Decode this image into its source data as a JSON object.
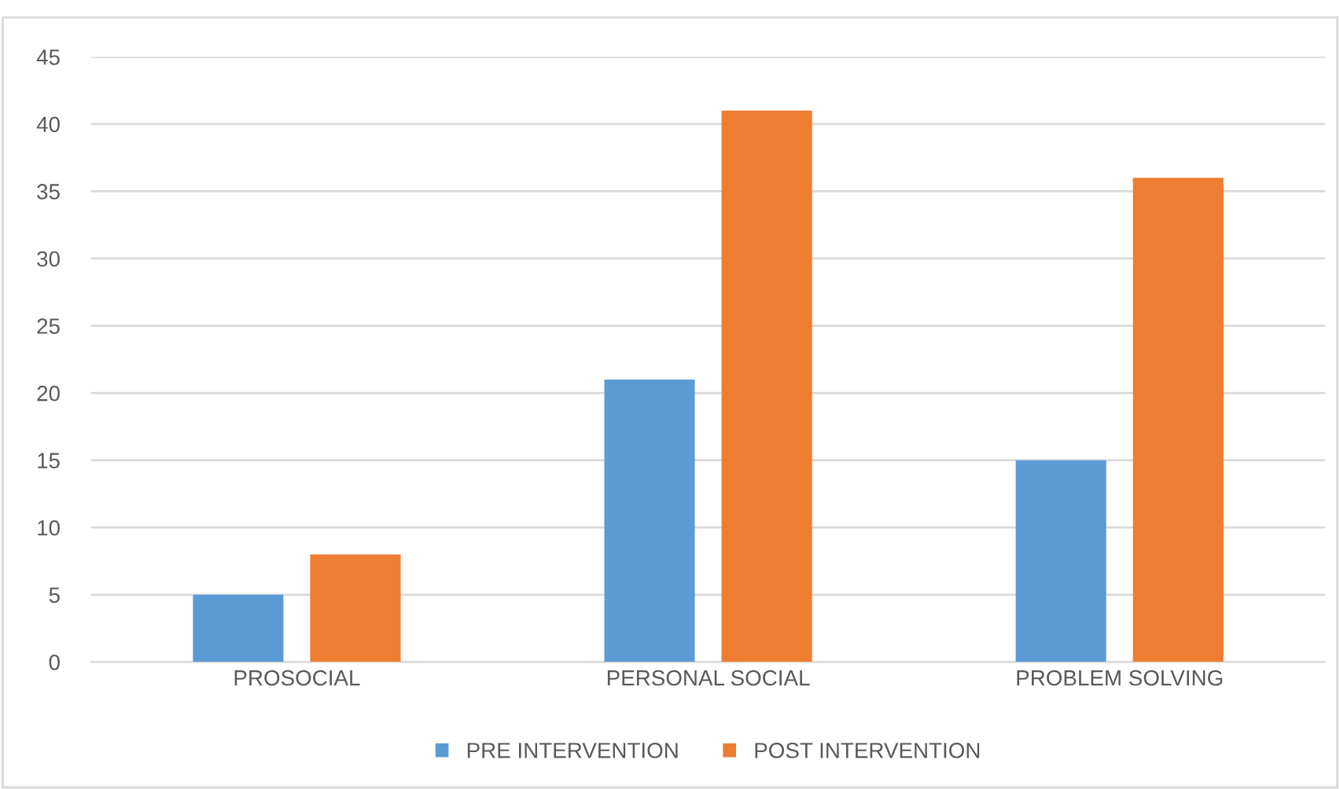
{
  "chart_data": {
    "type": "bar",
    "categories": [
      "PROSOCIAL",
      "PERSONAL SOCIAL",
      "PROBLEM SOLVING"
    ],
    "series": [
      {
        "name": "PRE INTERVENTION",
        "color": "#5b9bd5",
        "values": [
          5,
          21,
          15
        ]
      },
      {
        "name": "POST INTERVENTION",
        "color": "#ed7d31",
        "values": [
          8,
          41,
          36
        ]
      }
    ],
    "ylim": [
      0,
      45
    ],
    "yticks": [
      0,
      5,
      10,
      15,
      20,
      25,
      30,
      35,
      40,
      45
    ],
    "grid": "y",
    "legend": "bottom"
  }
}
